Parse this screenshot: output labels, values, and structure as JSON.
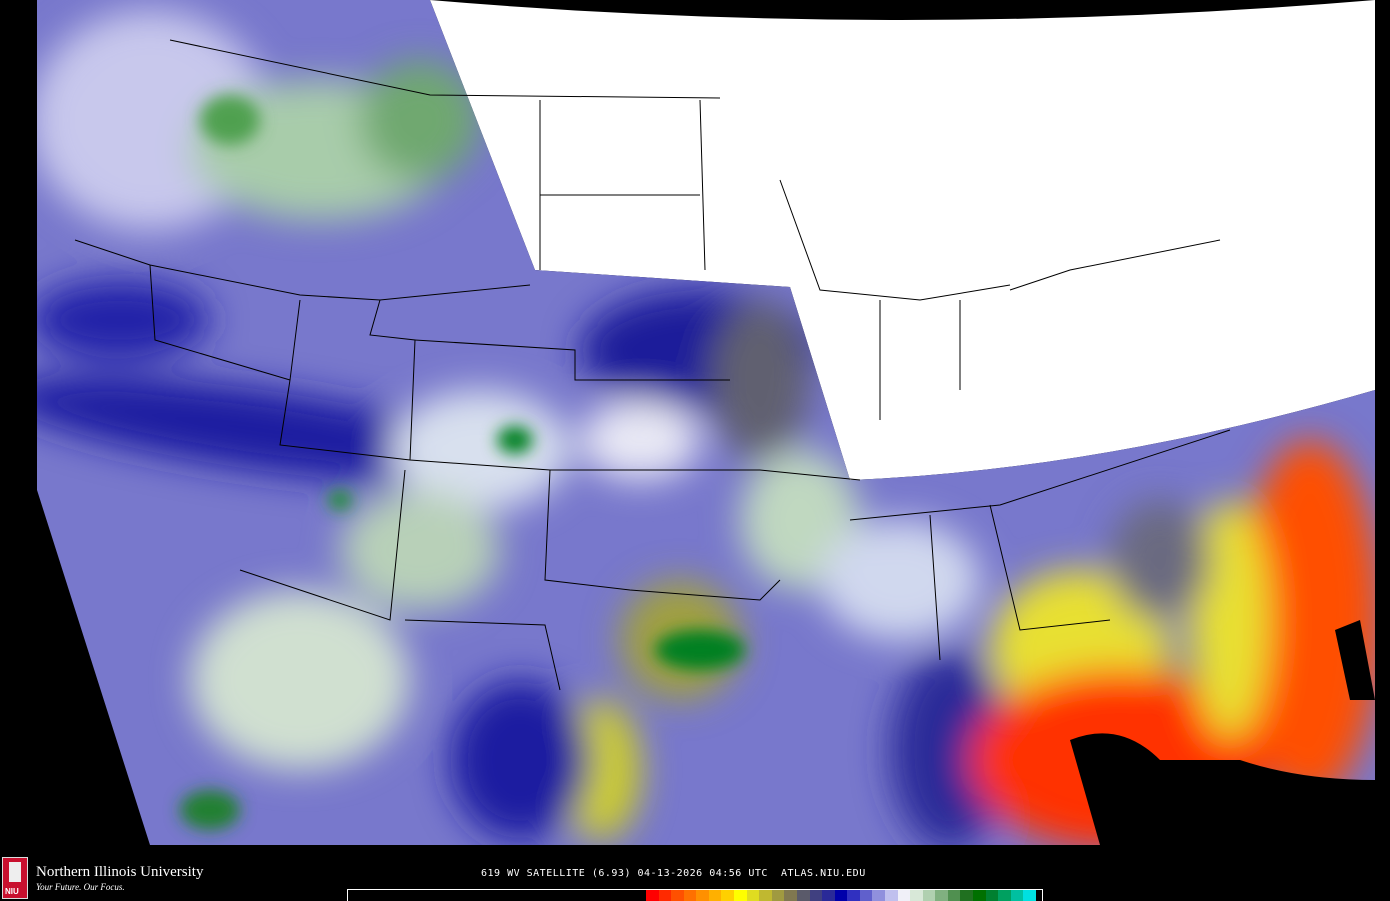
{
  "logo": {
    "name": "Northern Illinois University",
    "tagline": "Your Future. Our Focus.",
    "seal_text": "NIU"
  },
  "caption": "619 WV SATELLITE (6.93) 04-13-2026 04:56 UTC  ATLAS.NIU.EDU",
  "colorbar": [
    "#ff0000",
    "#ff2a00",
    "#ff5000",
    "#ff7000",
    "#ff9000",
    "#ffb000",
    "#ffd000",
    "#ffff00",
    "#e0dc20",
    "#c0b830",
    "#a09a40",
    "#807850",
    "#5a5a6a",
    "#404080",
    "#2a2a98",
    "#0000aa",
    "#3030c0",
    "#6060cc",
    "#9090dd",
    "#c0c0ee",
    "#f0f0f8",
    "#d8e8d8",
    "#b0d0b0",
    "#80b080",
    "#509050",
    "#207020",
    "#007000",
    "#008030",
    "#00a060",
    "#00c0a0",
    "#00e0e0"
  ],
  "map": {
    "product": "water vapor",
    "no_data_color": "#ffffff"
  }
}
